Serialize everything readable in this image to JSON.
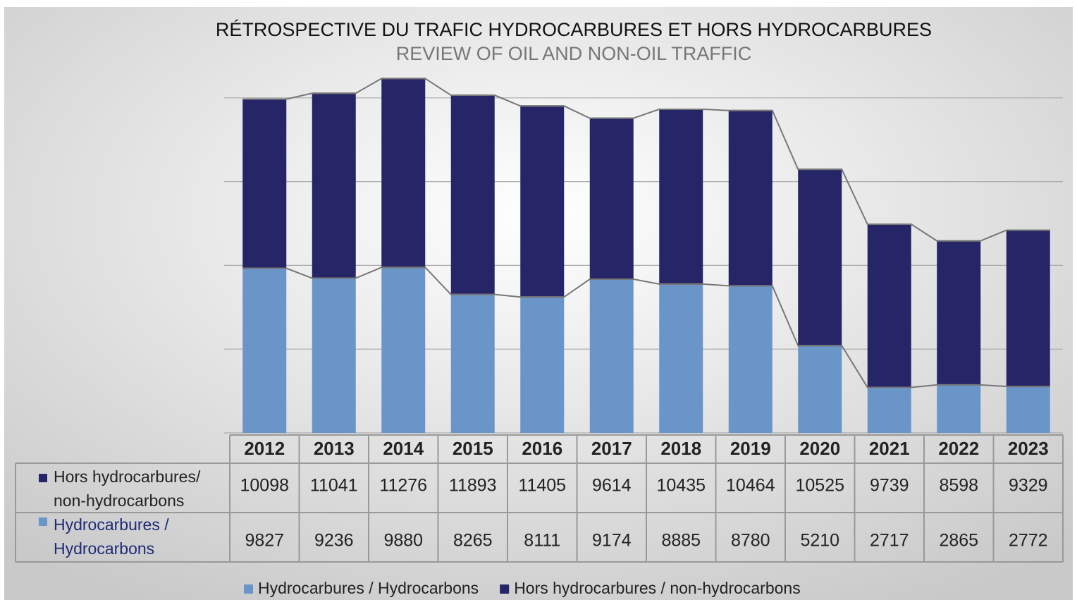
{
  "chart_data": {
    "type": "stacked_bar",
    "title": "RÉTROSPECTIVE DU TRAFIC HYDROCARBURES ET HORS HYDROCARBURES",
    "subtitle": "REVIEW OF OIL AND NON-OIL TRAFFIC",
    "categories": [
      "2012",
      "2013",
      "2014",
      "2015",
      "2016",
      "2017",
      "2018",
      "2019",
      "2020",
      "2021",
      "2022",
      "2023"
    ],
    "series": [
      {
        "name": "Hydrocarbures / Hydrocarbons",
        "color": "#6a95c9",
        "values": [
          9827,
          9236,
          9880,
          8265,
          8111,
          9174,
          8885,
          8780,
          5210,
          2717,
          2865,
          2772
        ]
      },
      {
        "name": "Hors hydrocarbures / non-hydrocarbons",
        "color": "#252568",
        "values": [
          10098,
          11041,
          11276,
          11893,
          11405,
          9614,
          10435,
          10464,
          10525,
          9739,
          8598,
          9329
        ]
      }
    ],
    "table_row_labels": [
      [
        "Hors hydrocarbures/",
        "non-hydrocarbons"
      ],
      [
        "Hydrocarbures /",
        "Hydrocarbons"
      ]
    ],
    "ylim": [
      0,
      25000
    ],
    "yticks": [
      0,
      5000,
      10000,
      15000,
      20000
    ],
    "grid": true
  }
}
